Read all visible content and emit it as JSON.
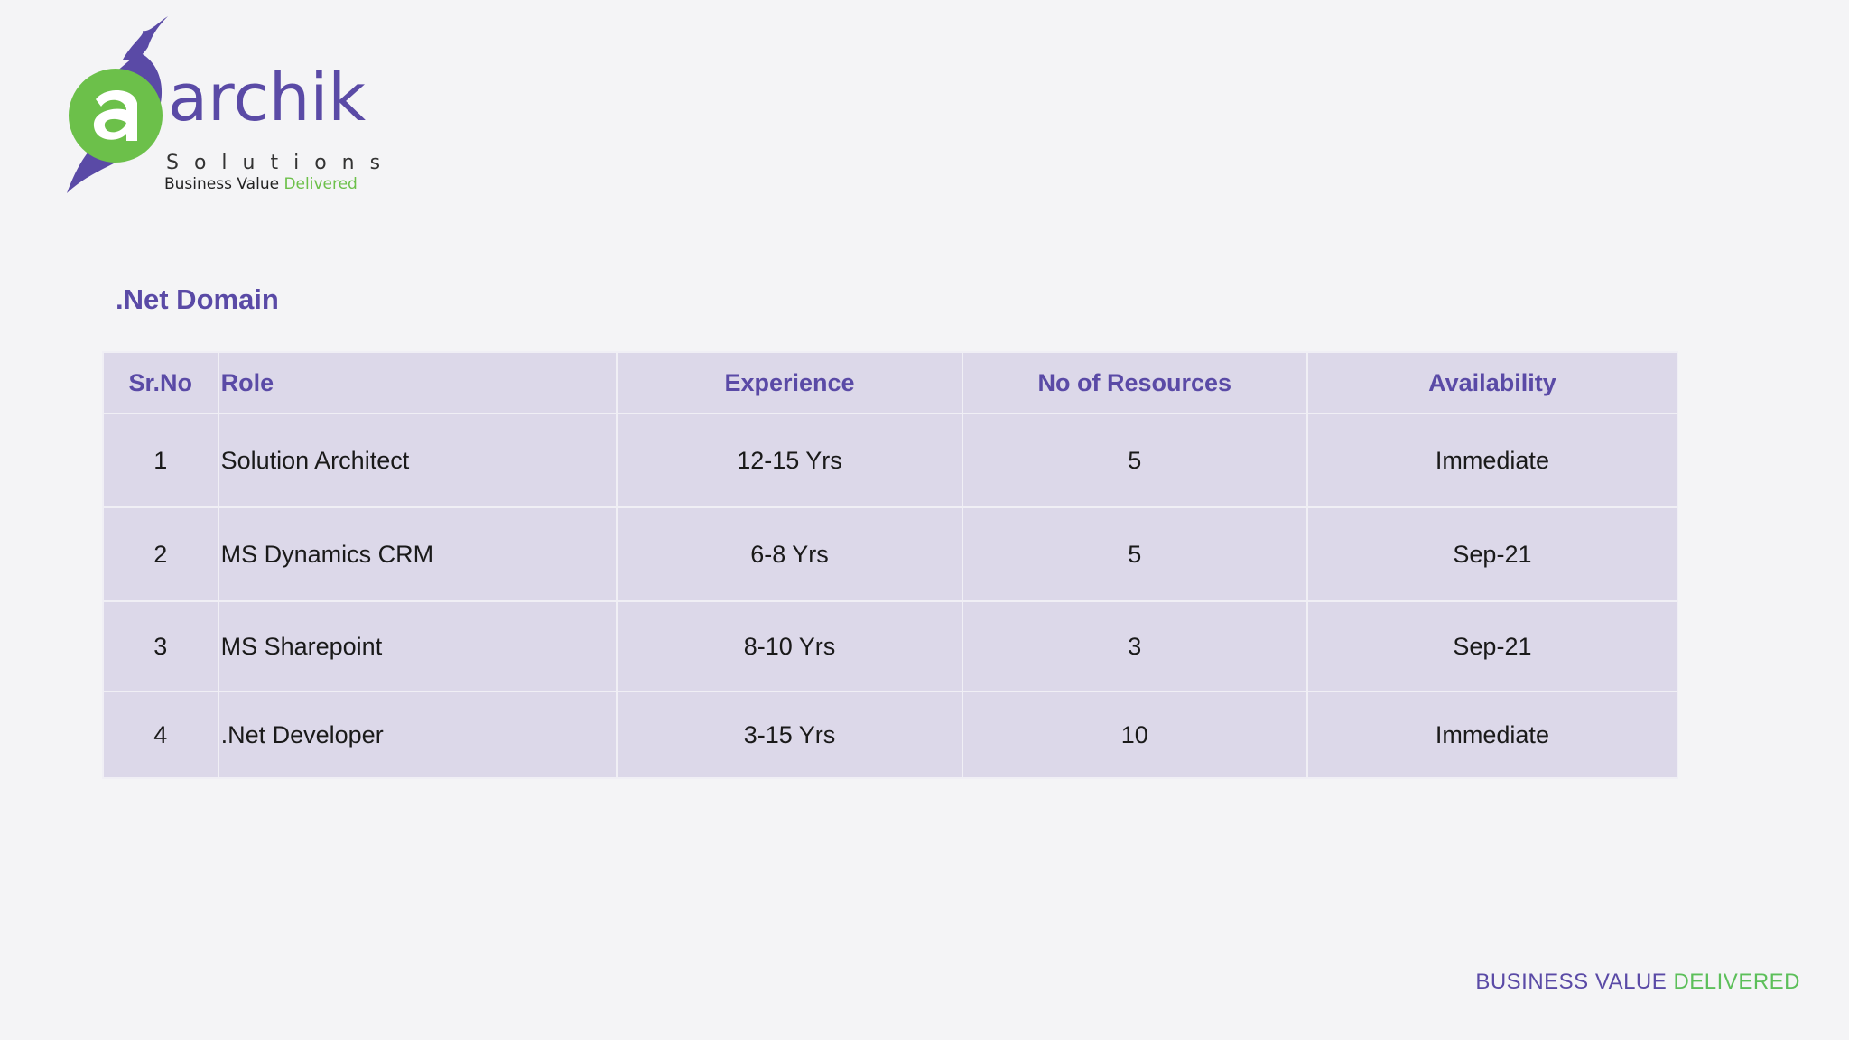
{
  "logo": {
    "word": "archik",
    "solutions": "Solutions",
    "tagline_main": "Business Value",
    "tagline_accent": "Delivered"
  },
  "section": {
    "title": ".Net Domain"
  },
  "table": {
    "headers": {
      "sr": "Sr.No",
      "role": "Role",
      "experience": "Experience",
      "resources": "No of Resources",
      "availability": "Availability"
    },
    "rows": [
      {
        "sr": "1",
        "role": "Solution Architect",
        "experience": "12-15 Yrs",
        "resources": "5",
        "availability": "Immediate"
      },
      {
        "sr": "2",
        "role": "MS Dynamics CRM",
        "experience": "6-8 Yrs",
        "resources": "5",
        "availability": "Sep-21"
      },
      {
        "sr": "3",
        "role": "MS Sharepoint",
        "experience": "8-10 Yrs",
        "resources": "3",
        "availability": "Sep-21"
      },
      {
        "sr": "4",
        "role": ".Net Developer",
        "experience": "3-15 Yrs",
        "resources": "10",
        "availability": "Immediate"
      }
    ]
  },
  "footer": {
    "main": "BUSINESS VALUE",
    "accent": "DELIVERED"
  },
  "colors": {
    "brand_purple": "#5a4aa6",
    "brand_green": "#6cc04a",
    "table_fill": "#dcd8e9",
    "background": "#f4f4f6"
  },
  "icons": {
    "logo_mark": "hummingbird-logo-icon"
  }
}
